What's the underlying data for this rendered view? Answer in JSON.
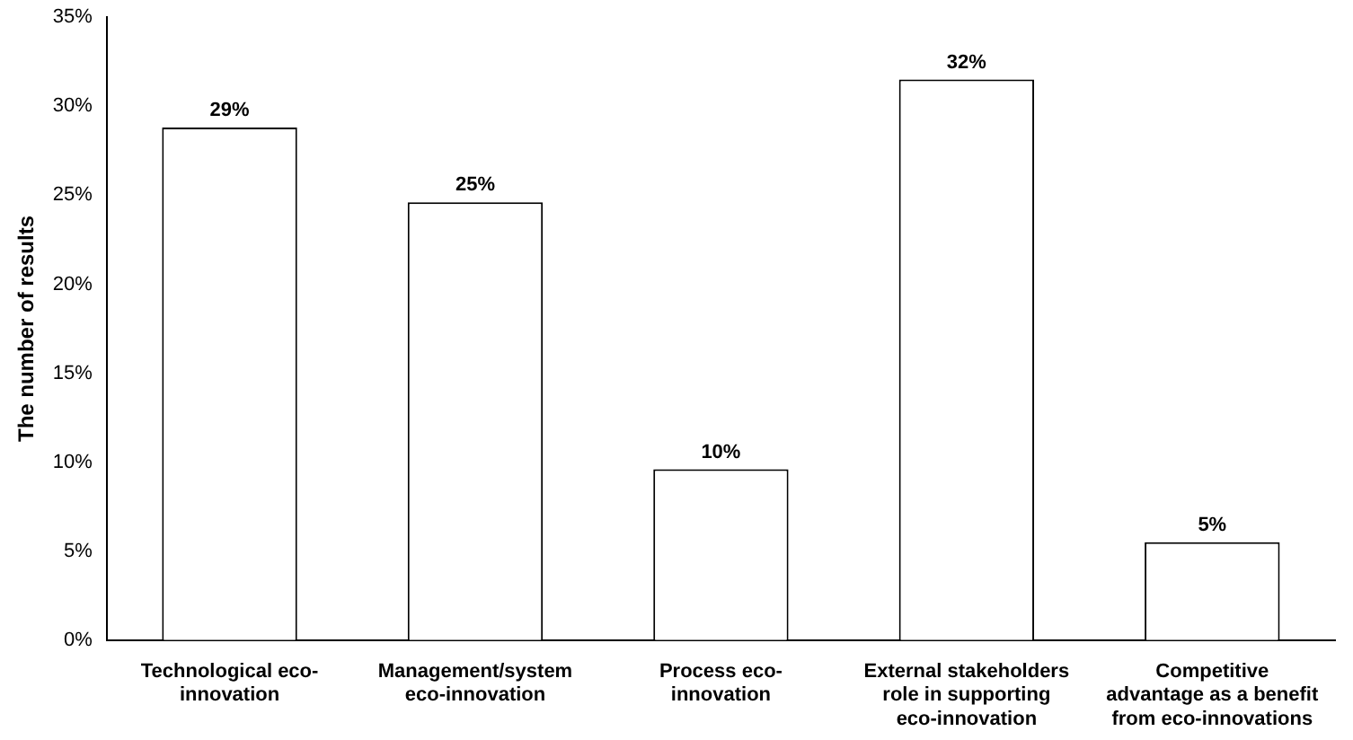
{
  "chart_data": {
    "type": "bar",
    "ylabel": "The number of results",
    "categories": [
      "Technological eco-innovation",
      "Management/system eco-innovation",
      "Process eco-innovation",
      "External stakeholders role in supporting eco-innovation",
      "Competitive advantage as a benefit from eco-innovations"
    ],
    "values": [
      28.8,
      24.6,
      9.6,
      31.5,
      5.5
    ],
    "value_labels": [
      "29%",
      "25%",
      "10%",
      "32%",
      "5%"
    ],
    "color": "#ffffff",
    "ylim": [
      0,
      35
    ],
    "yticks": [
      {
        "value": 0,
        "label": "0%"
      },
      {
        "value": 5,
        "label": "5%"
      },
      {
        "value": 10,
        "label": "10%"
      },
      {
        "value": 15,
        "label": "15%"
      },
      {
        "value": 20,
        "label": "20%"
      },
      {
        "value": 25,
        "label": "25%"
      },
      {
        "value": 30,
        "label": "30%"
      },
      {
        "value": 35,
        "label": "35%"
      }
    ],
    "grid": false,
    "legend": false
  }
}
